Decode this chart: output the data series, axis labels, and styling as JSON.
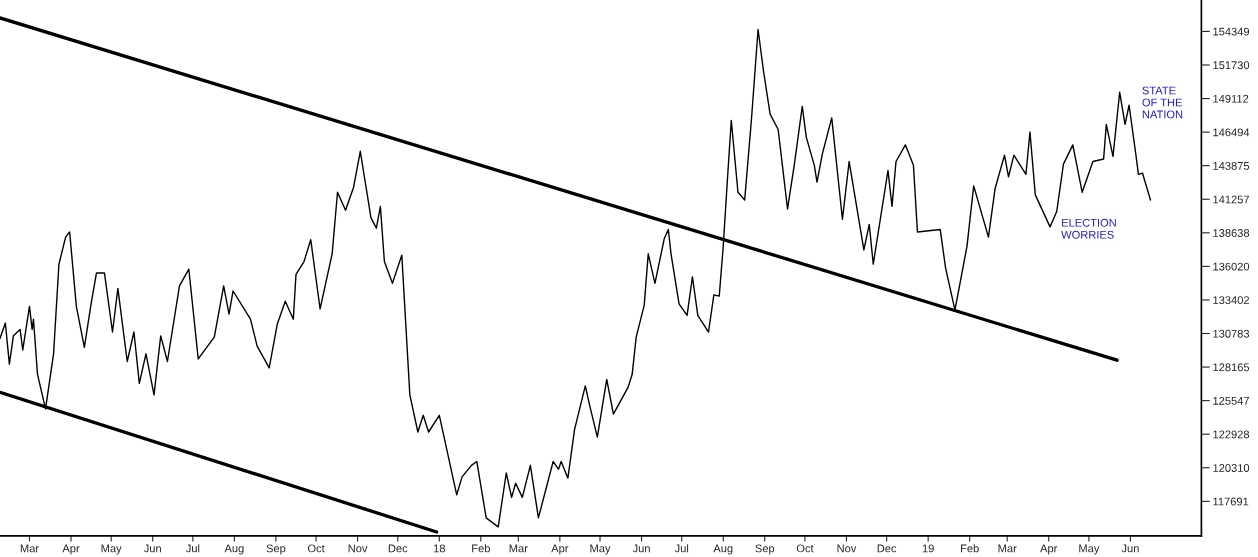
{
  "chart_data": {
    "type": "line",
    "annotations": [
      {
        "text": "STATE\nOF THE\nNATION",
        "x": "2019-05-24",
        "y": 149600
      },
      {
        "text": "ELECTION\nWORRIES",
        "x": "2019-04-02",
        "y": 139100
      }
    ],
    "xlim": [
      "2017-02-07",
      "2019-07-24"
    ],
    "xticks": [
      {
        "value": "2017-03-01",
        "label": "Mar"
      },
      {
        "value": "2017-04-01",
        "label": "Apr"
      },
      {
        "value": "2017-05-01",
        "label": "May"
      },
      {
        "value": "2017-06-01",
        "label": "Jun"
      },
      {
        "value": "2017-07-01",
        "label": "Jul"
      },
      {
        "value": "2017-08-01",
        "label": "Aug"
      },
      {
        "value": "2017-09-01",
        "label": "Sep"
      },
      {
        "value": "2017-10-01",
        "label": "Oct"
      },
      {
        "value": "2017-11-01",
        "label": "Nov"
      },
      {
        "value": "2017-12-01",
        "label": "Dec"
      },
      {
        "value": "2018-01-01",
        "label": "18"
      },
      {
        "value": "2018-02-01",
        "label": "Feb"
      },
      {
        "value": "2018-03-01",
        "label": "Mar"
      },
      {
        "value": "2018-04-01",
        "label": "Apr"
      },
      {
        "value": "2018-05-01",
        "label": "May"
      },
      {
        "value": "2018-06-01",
        "label": "Jun"
      },
      {
        "value": "2018-07-01",
        "label": "Jul"
      },
      {
        "value": "2018-08-01",
        "label": "Aug"
      },
      {
        "value": "2018-09-01",
        "label": "Sep"
      },
      {
        "value": "2018-10-01",
        "label": "Oct"
      },
      {
        "value": "2018-11-01",
        "label": "Nov"
      },
      {
        "value": "2018-12-01",
        "label": "Dec"
      },
      {
        "value": "2019-01-01",
        "label": "19"
      },
      {
        "value": "2019-02-01",
        "label": "Feb"
      },
      {
        "value": "2019-03-01",
        "label": "Mar"
      },
      {
        "value": "2019-04-01",
        "label": "Apr"
      },
      {
        "value": "2019-05-01",
        "label": "May"
      },
      {
        "value": "2019-06-01",
        "label": "Jun"
      }
    ],
    "ylim": [
      115000,
      156800
    ],
    "yticks": [
      117691,
      120310,
      122928,
      125547,
      128165,
      130783,
      133402,
      136020,
      138638,
      141257,
      143875,
      146494,
      149112,
      151730,
      154349
    ],
    "series": [
      {
        "color": "#000000",
        "x": [
          "2017-02-07",
          "2017-02-11",
          "2017-02-14",
          "2017-02-17",
          "2017-02-22",
          "2017-02-24",
          "2017-03-01",
          "2017-03-03",
          "2017-03-04",
          "2017-03-07",
          "2017-03-13",
          "2017-03-19",
          "2017-03-23",
          "2017-03-28",
          "2017-03-31",
          "2017-04-05",
          "2017-04-11",
          "2017-04-16",
          "2017-04-20",
          "2017-04-26",
          "2017-05-02",
          "2017-05-06",
          "2017-05-13",
          "2017-05-18",
          "2017-05-22",
          "2017-05-27",
          "2017-06-02",
          "2017-06-07",
          "2017-06-12",
          "2017-06-21",
          "2017-06-28",
          "2017-07-05",
          "2017-07-17",
          "2017-07-24",
          "2017-07-28",
          "2017-07-31",
          "2017-08-13",
          "2017-08-18",
          "2017-08-27",
          "2017-09-02",
          "2017-09-08",
          "2017-09-14",
          "2017-09-16",
          "2017-09-22",
          "2017-09-27",
          "2017-10-04",
          "2017-10-13",
          "2017-10-17",
          "2017-10-23",
          "2017-10-29",
          "2017-11-03",
          "2017-11-11",
          "2017-11-15",
          "2017-11-18",
          "2017-11-21",
          "2017-11-27",
          "2017-12-04",
          "2017-12-10",
          "2017-12-16",
          "2017-12-20",
          "2017-12-24",
          "2018-01-01",
          "2018-01-14",
          "2018-01-18",
          "2018-01-25",
          "2018-01-29",
          "2018-02-05",
          "2018-02-14",
          "2018-02-20",
          "2018-02-24",
          "2018-02-27",
          "2018-03-04",
          "2018-03-10",
          "2018-03-16",
          "2018-03-27",
          "2018-03-31",
          "2018-04-02",
          "2018-04-07",
          "2018-04-12",
          "2018-04-20",
          "2018-04-23",
          "2018-04-29",
          "2018-05-06",
          "2018-05-11",
          "2018-05-22",
          "2018-05-25",
          "2018-05-28",
          "2018-06-03",
          "2018-06-06",
          "2018-06-11",
          "2018-06-18",
          "2018-06-21",
          "2018-06-23",
          "2018-06-29",
          "2018-07-05",
          "2018-07-09",
          "2018-07-13",
          "2018-07-21",
          "2018-07-25",
          "2018-07-29",
          "2018-08-01",
          "2018-08-04",
          "2018-08-07",
          "2018-08-12",
          "2018-08-17",
          "2018-08-22",
          "2018-08-27",
          "2018-08-31",
          "2018-09-05",
          "2018-09-11",
          "2018-09-18",
          "2018-09-23",
          "2018-09-29",
          "2018-10-02",
          "2018-10-08",
          "2018-10-10",
          "2018-10-14",
          "2018-10-21",
          "2018-10-29",
          "2018-11-03",
          "2018-11-14",
          "2018-11-18",
          "2018-11-21",
          "2018-12-02",
          "2018-12-05",
          "2018-12-08",
          "2018-12-15",
          "2018-12-21",
          "2018-12-24",
          "2019-01-10",
          "2019-01-14",
          "2019-01-21",
          "2019-01-30",
          "2019-02-04",
          "2019-02-15",
          "2019-02-20",
          "2019-02-27",
          "2019-03-02",
          "2019-03-06",
          "2019-03-15",
          "2019-03-18",
          "2019-03-22",
          "2019-04-02",
          "2019-04-07",
          "2019-04-12",
          "2019-04-19",
          "2019-04-26",
          "2019-05-04",
          "2019-05-12",
          "2019-05-14",
          "2019-05-19",
          "2019-05-24",
          "2019-05-28",
          "2019-05-31",
          "2019-06-05",
          "2019-06-07",
          "2019-06-10",
          "2019-06-16"
        ],
        "values": [
          130400,
          131600,
          128400,
          130600,
          131100,
          129500,
          132900,
          131100,
          131900,
          127600,
          124900,
          129200,
          136200,
          138300,
          138700,
          132900,
          129700,
          133100,
          135500,
          135500,
          130900,
          134300,
          128600,
          130900,
          126900,
          129200,
          126000,
          130600,
          128600,
          134500,
          135800,
          128800,
          130500,
          134500,
          132300,
          134100,
          131900,
          129800,
          128100,
          131500,
          133300,
          131900,
          135400,
          136400,
          138100,
          132700,
          137000,
          141800,
          140400,
          142200,
          145000,
          139800,
          139000,
          140700,
          136400,
          134700,
          136900,
          126000,
          123100,
          124400,
          123100,
          124400,
          118200,
          119600,
          120500,
          120800,
          116400,
          115700,
          119900,
          118000,
          119100,
          118000,
          120500,
          116400,
          120800,
          120200,
          120800,
          119500,
          123300,
          126700,
          125300,
          122700,
          127200,
          124500,
          126600,
          127600,
          130500,
          133000,
          137000,
          134700,
          138200,
          138900,
          137000,
          133100,
          132200,
          135200,
          132200,
          130900,
          133800,
          133700,
          137600,
          142600,
          147400,
          141800,
          141200,
          147400,
          154500,
          151300,
          147900,
          146700,
          140500,
          143900,
          148500,
          146100,
          143900,
          142600,
          144800,
          147600,
          139700,
          144200,
          137300,
          139300,
          136200,
          143500,
          140700,
          144200,
          145500,
          143900,
          138700,
          138900,
          135900,
          132600,
          137600,
          142300,
          138300,
          142100,
          144700,
          143000,
          144700,
          143200,
          146500,
          141600,
          139100,
          140300,
          144000,
          145500,
          141800,
          144200,
          144400,
          147100,
          144600,
          149600,
          147100,
          148600,
          144800,
          143200,
          143300,
          141200
        ]
      },
      {
        "type": "line",
        "color": "#000000",
        "x": [
          "2017-02-07",
          "2019-05-22"
        ],
        "values": [
          155400,
          128700
        ]
      },
      {
        "type": "line",
        "color": "#000000",
        "x": [
          "2017-02-07",
          "2017-12-30"
        ],
        "values": [
          126200,
          115300
        ]
      }
    ]
  }
}
